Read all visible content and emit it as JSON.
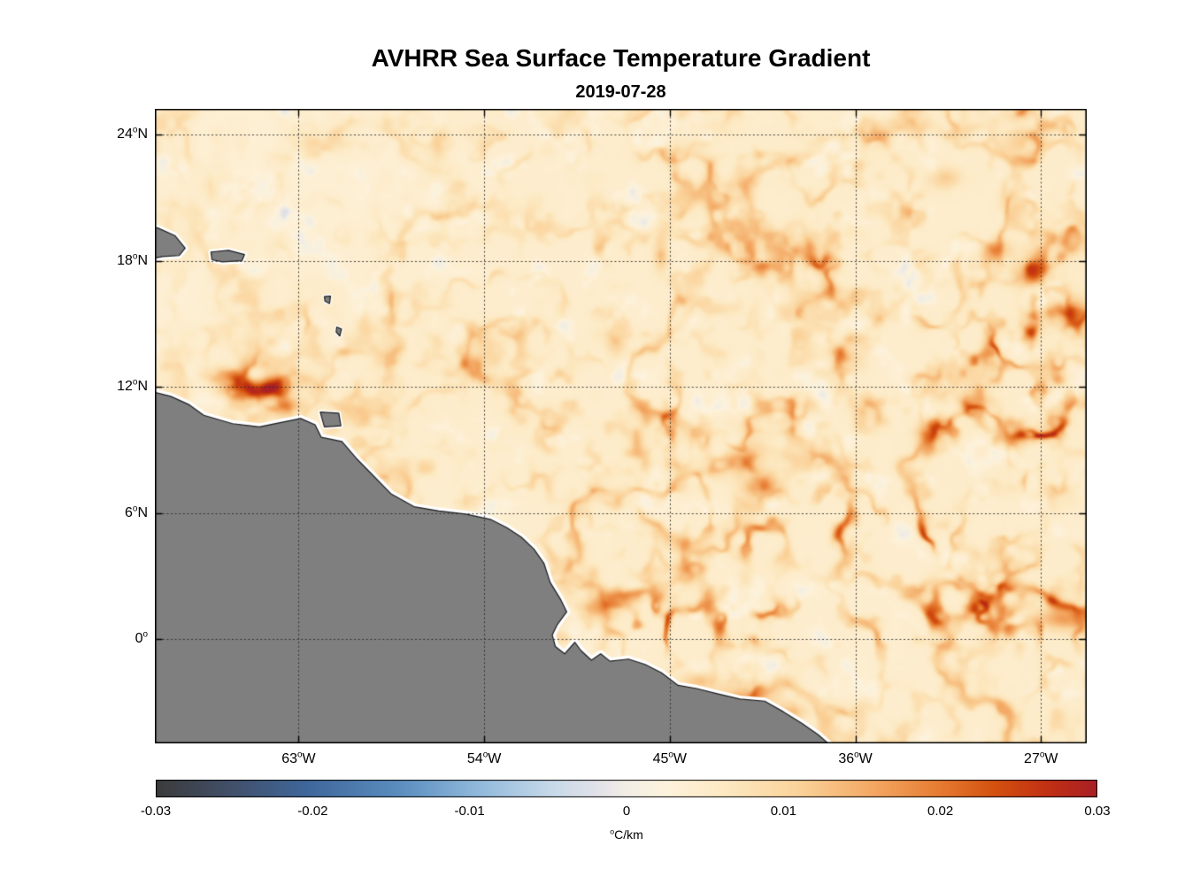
{
  "chart_data": {
    "type": "heatmap",
    "title": "AVHRR Sea Surface Temperature Gradient",
    "subtitle": "2019-07-28",
    "variable": "sea surface temperature gradient magnitude",
    "units": "°C/km",
    "lon_range": [
      -69.97,
      -24.78
    ],
    "lat_range": [
      -4.96,
      25.23
    ],
    "value_range": [
      -0.03,
      0.03
    ],
    "grid": true,
    "x_ticks": [
      {
        "lon": -63,
        "label": "63°W"
      },
      {
        "lon": -54,
        "label": "54°W"
      },
      {
        "lon": -45,
        "label": "45°W"
      },
      {
        "lon": -36,
        "label": "36°W"
      },
      {
        "lon": -27,
        "label": "27°W"
      }
    ],
    "y_ticks": [
      {
        "lat": 24,
        "label": "24°N"
      },
      {
        "lat": 18,
        "label": "18°N"
      },
      {
        "lat": 12,
        "label": "12°N"
      },
      {
        "lat": 6,
        "label": "6°N"
      },
      {
        "lat": 0,
        "label": "0°"
      }
    ],
    "colorbar": {
      "label": "°C/km",
      "ticks": [
        {
          "value": -0.03,
          "label": "-0.03"
        },
        {
          "value": -0.02,
          "label": "-0.02"
        },
        {
          "value": -0.01,
          "label": "-0.01"
        },
        {
          "value": 0,
          "label": "0"
        },
        {
          "value": 0.01,
          "label": "0.01"
        },
        {
          "value": 0.02,
          "label": "0.02"
        },
        {
          "value": 0.03,
          "label": "0.03"
        }
      ],
      "stops": [
        {
          "pos": 0.0,
          "color": "#3b3b3b"
        },
        {
          "pos": 0.08,
          "color": "#42506a"
        },
        {
          "pos": 0.16,
          "color": "#3f679b"
        },
        {
          "pos": 0.26,
          "color": "#5c8ec0"
        },
        {
          "pos": 0.34,
          "color": "#8fb8db"
        },
        {
          "pos": 0.42,
          "color": "#c6d9e9"
        },
        {
          "pos": 0.47,
          "color": "#e2e2e8"
        },
        {
          "pos": 0.5,
          "color": "#f2eee6"
        },
        {
          "pos": 0.54,
          "color": "#fdf3dd"
        },
        {
          "pos": 0.6,
          "color": "#fdeac4"
        },
        {
          "pos": 0.68,
          "color": "#fbd49c"
        },
        {
          "pos": 0.76,
          "color": "#f4a964"
        },
        {
          "pos": 0.83,
          "color": "#e77d33"
        },
        {
          "pos": 0.89,
          "color": "#d4520f"
        },
        {
          "pos": 0.95,
          "color": "#c02f14"
        },
        {
          "pos": 1.0,
          "color": "#a82026"
        }
      ]
    },
    "colors": {
      "land": "#7f7f7f",
      "coast_outline": "#1c1c1c",
      "coast_halo": "#ffffff",
      "background": "#ffffff",
      "grid": "#2b2b2b",
      "axis": "#000000"
    },
    "land": {
      "mainland": [
        [
          -70.6,
          11.9
        ],
        [
          -69.2,
          11.55
        ],
        [
          -68.3,
          11.15
        ],
        [
          -67.6,
          10.65
        ],
        [
          -66.2,
          10.25
        ],
        [
          -64.9,
          10.1
        ],
        [
          -63.9,
          10.3
        ],
        [
          -62.9,
          10.5
        ],
        [
          -62.2,
          10.2
        ],
        [
          -61.9,
          9.6
        ],
        [
          -60.9,
          9.4
        ],
        [
          -60.2,
          8.6
        ],
        [
          -59.6,
          8.0
        ],
        [
          -58.5,
          6.9
        ],
        [
          -57.4,
          6.3
        ],
        [
          -56.2,
          6.1
        ],
        [
          -54.9,
          5.95
        ],
        [
          -53.7,
          5.7
        ],
        [
          -52.9,
          5.3
        ],
        [
          -52.2,
          4.85
        ],
        [
          -51.6,
          4.3
        ],
        [
          -51.1,
          3.6
        ],
        [
          -50.8,
          2.7
        ],
        [
          -50.3,
          1.9
        ],
        [
          -50.0,
          1.3
        ],
        [
          -50.45,
          0.7
        ],
        [
          -50.7,
          0.2
        ],
        [
          -50.55,
          -0.35
        ],
        [
          -50.1,
          -0.7
        ],
        [
          -49.6,
          -0.15
        ],
        [
          -49.3,
          -0.55
        ],
        [
          -48.8,
          -1.0
        ],
        [
          -48.35,
          -0.7
        ],
        [
          -47.9,
          -1.05
        ],
        [
          -47.0,
          -0.95
        ],
        [
          -46.2,
          -1.2
        ],
        [
          -45.4,
          -1.6
        ],
        [
          -44.6,
          -2.2
        ],
        [
          -43.7,
          -2.35
        ],
        [
          -42.7,
          -2.6
        ],
        [
          -41.6,
          -2.85
        ],
        [
          -40.4,
          -2.95
        ],
        [
          -39.5,
          -3.45
        ],
        [
          -38.6,
          -4.0
        ],
        [
          -37.8,
          -4.55
        ],
        [
          -37.1,
          -5.15
        ],
        [
          -36.7,
          -5.6
        ],
        [
          -70.6,
          -5.6
        ]
      ],
      "islands": [
        {
          "name": "hispaniola",
          "halo": 7,
          "points": [
            [
              -70.6,
              19.75
            ],
            [
              -69.8,
              19.55
            ],
            [
              -69.0,
              19.2
            ],
            [
              -68.5,
              18.6
            ],
            [
              -68.8,
              18.25
            ],
            [
              -69.6,
              18.2
            ],
            [
              -70.6,
              18.0
            ]
          ]
        },
        {
          "name": "puerto-rico",
          "halo": 6,
          "points": [
            [
              -67.25,
              18.42
            ],
            [
              -66.4,
              18.5
            ],
            [
              -65.62,
              18.3
            ],
            [
              -65.75,
              18.0
            ],
            [
              -66.7,
              17.95
            ],
            [
              -67.2,
              18.05
            ]
          ]
        },
        {
          "name": "trinidad",
          "halo": 5,
          "points": [
            [
              -61.95,
              10.8
            ],
            [
              -61.05,
              10.75
            ],
            [
              -60.95,
              10.15
            ],
            [
              -61.75,
              10.1
            ]
          ]
        },
        {
          "name": "guadeloupe",
          "halo": 4,
          "points": [
            [
              -61.75,
              16.3
            ],
            [
              -61.45,
              16.32
            ],
            [
              -61.5,
              15.97
            ],
            [
              -61.72,
              16.08
            ]
          ]
        },
        {
          "name": "martinique",
          "halo": 4,
          "points": [
            [
              -61.15,
              14.85
            ],
            [
              -60.92,
              14.75
            ],
            [
              -61.0,
              14.42
            ],
            [
              -61.18,
              14.62
            ]
          ]
        }
      ]
    },
    "field": {
      "base": 0.0032,
      "features": [
        {
          "lon": -66.5,
          "lat": 12.55,
          "sx": 0.8,
          "sy": 0.45,
          "core": 0.011
        },
        {
          "lon": -65.0,
          "lat": 11.85,
          "sx": 1.2,
          "sy": 0.5,
          "core": 0.022
        },
        {
          "lon": -63.5,
          "lat": 11.15,
          "sx": 0.7,
          "sy": 0.35,
          "core": 0.012
        },
        {
          "lon": -48.3,
          "lat": 1.5,
          "sx": 0.8,
          "sy": 0.55,
          "core": 0.015
        },
        {
          "lon": -25.7,
          "lat": 0.95,
          "sx": 1.5,
          "sy": 0.55,
          "core": 0.016
        },
        {
          "lon": -41.4,
          "lat": 8.3,
          "sx": 0.8,
          "sy": 0.6,
          "core": 0.012
        },
        {
          "lon": -40.6,
          "lat": 7.2,
          "sx": 0.9,
          "sy": 0.55,
          "core": 0.015
        },
        {
          "lon": -27.4,
          "lat": 17.4,
          "sx": 1.1,
          "sy": 0.6,
          "core": 0.013
        },
        {
          "lon": -25.5,
          "lat": 15.6,
          "sx": 0.9,
          "sy": 0.65,
          "core": 0.016
        },
        {
          "lon": -29.1,
          "lat": 18.5,
          "sx": 0.8,
          "sy": 0.5,
          "core": 0.01
        },
        {
          "lon": -45.4,
          "lat": 18.4,
          "sx": 0.35,
          "sy": 0.85,
          "core": 0.012
        },
        {
          "lon": -36.7,
          "lat": 13.6,
          "sx": 0.55,
          "sy": 0.4,
          "core": 0.011
        },
        {
          "lon": -31.9,
          "lat": 9.8,
          "sx": 0.85,
          "sy": 0.6,
          "core": 0.012
        },
        {
          "lon": -43.6,
          "lat": -2.05,
          "sx": 0.9,
          "sy": 0.4,
          "core": 0.011
        },
        {
          "lon": -41.4,
          "lat": -2.75,
          "sx": 1.1,
          "sy": 0.45,
          "core": 0.013
        },
        {
          "lon": -39.2,
          "lat": -3.5,
          "sx": 0.9,
          "sy": 0.4,
          "core": 0.011
        },
        {
          "lon": -31.6,
          "lat": 21.9,
          "sx": 0.7,
          "sy": 0.5,
          "core": 0.009
        },
        {
          "lon": -47.6,
          "lat": 14.1,
          "sx": 0.5,
          "sy": 0.65,
          "core": 0.009
        },
        {
          "lon": -52.6,
          "lat": 2.9,
          "sx": 0.7,
          "sy": 0.5,
          "core": 0.009
        },
        {
          "lon": -28.2,
          "lat": 20.5,
          "sx": 0.6,
          "sy": 0.6,
          "core": 0.008
        }
      ],
      "boosts": [
        {
          "lon": -65.2,
          "lat": 12.1,
          "sx": 2.0,
          "sy": 1.0,
          "b": 1.4
        },
        {
          "lon": -41.0,
          "lat": 4.9,
          "sx": 1.8,
          "sy": 1.0,
          "b": 1.5
        },
        {
          "lon": -37.0,
          "lat": 5.4,
          "sx": 1.9,
          "sy": 0.95,
          "b": 1.7
        },
        {
          "lon": -33.0,
          "lat": 4.6,
          "sx": 1.7,
          "sy": 0.95,
          "b": 1.7
        },
        {
          "lon": -30.2,
          "lat": 3.0,
          "sx": 1.5,
          "sy": 1.1,
          "b": 1.5
        },
        {
          "lon": -28.6,
          "lat": 6.6,
          "sx": 1.7,
          "sy": 1.1,
          "b": 1.2
        },
        {
          "lon": -44.8,
          "lat": 8.8,
          "sx": 3.0,
          "sy": 2.2,
          "b": 0.8
        },
        {
          "lon": -29.3,
          "lat": 16.6,
          "sx": 2.6,
          "sy": 2.1,
          "b": 1.1
        },
        {
          "lon": -27.5,
          "lat": 10.3,
          "sx": 2.6,
          "sy": 2.3,
          "b": 0.9
        },
        {
          "lon": -31.0,
          "lat": 12.6,
          "sx": 2.2,
          "sy": 1.8,
          "b": 0.8
        },
        {
          "lon": -36.6,
          "lat": 16.9,
          "sx": 2.4,
          "sy": 2.0,
          "b": 0.7
        }
      ],
      "bands": [
        {
          "lat": 0.65,
          "sy": 1.15,
          "lonFrom": -49.5,
          "lonTo": -24.5,
          "b": 2.1
        }
      ]
    }
  }
}
